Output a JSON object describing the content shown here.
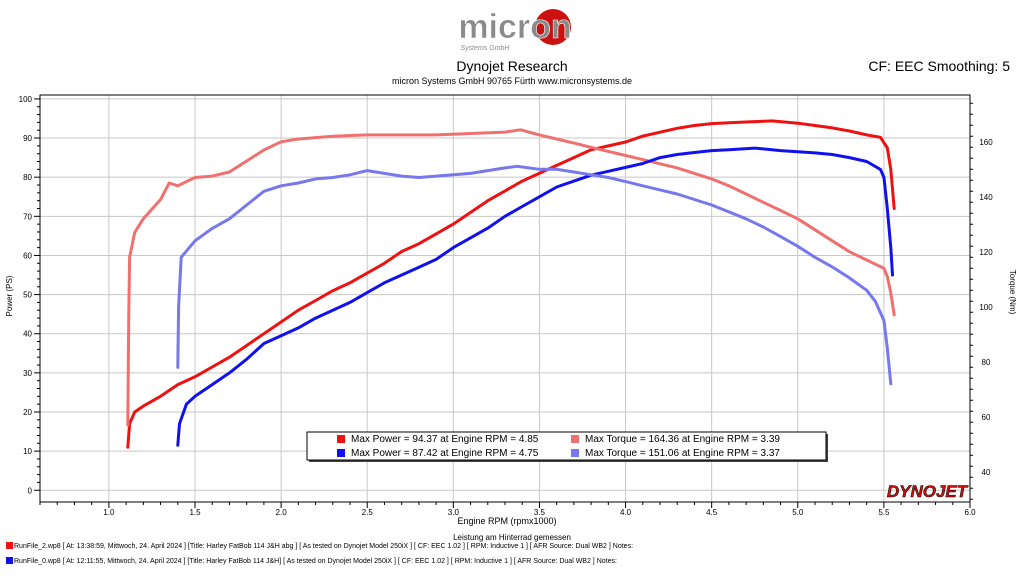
{
  "header": {
    "logo_text": "micron",
    "logo_subtext": "Systems GmbH",
    "title": "Dynojet Research",
    "subtitle": "micron Systems GmbH  90765 Fürth www.micronsystems.de",
    "smoothing": "CF: EEC Smoothing: 5"
  },
  "brand": {
    "text": "DYNOJET",
    "color": "#cc1111"
  },
  "footer": {
    "sub_label": "Leistung am Hinterrad gemessen",
    "runs": [
      {
        "text": "RunFile_2.wp8  [ At: 13:38:59, Mittwoch, 24. April 2024 ] [Title: Harley FatBob 114 J&H abg ]  [ As tested on Dynojet Model 250iX ] [ CF: EEC 1.02 ] [ RPM: Inductive 1 ] [ AFR Source: Dual WB2 ] Notes:",
        "color": "#ee1111"
      },
      {
        "text": "RunFile_0.wp8  [ At: 12:11:55, Mittwoch, 24. April 2024 ] [Title: Harley FatBob 114 J&H]  [ As tested on Dynojet Model 250iX ] [ CF: EEC 1.02 ] [ RPM: Inductive 1 ] [ AFR Source: Dual WB2 ] Notes:",
        "color": "#1111ee"
      }
    ]
  },
  "chart_data": {
    "type": "line",
    "xlabel": "Engine RPM (rpmx1000)",
    "ylabel_left": "Power (PS)",
    "ylabel_right": "Torque (Nm)",
    "xlim": [
      0.6,
      6.0
    ],
    "ylim_left": [
      -3,
      101
    ],
    "ylim_right": [
      29,
      177
    ],
    "x_ticks": [
      "1.0",
      "1.5",
      "2.0",
      "2.5",
      "3.0",
      "3.5",
      "4.0",
      "4.5",
      "5.0",
      "5.5",
      "6.0"
    ],
    "y_left_ticks": [
      "0",
      "10",
      "20",
      "30",
      "40",
      "50",
      "60",
      "70",
      "80",
      "90",
      "100"
    ],
    "y_right_ticks": [
      "40",
      "60",
      "80",
      "100",
      "120",
      "140",
      "160"
    ],
    "grid": true,
    "legend_position": "bottom-center",
    "legend": [
      {
        "text": "Max Power = 94.37 at Engine RPM = 4.85",
        "color": "#ee1111"
      },
      {
        "text": "Max Torque = 164.36 at Engine RPM = 3.39",
        "color": "#f07070"
      },
      {
        "text": "Max Power = 87.42 at Engine RPM = 4.75",
        "color": "#1111ee"
      },
      {
        "text": "Max Torque = 151.06 at Engine RPM = 3.37",
        "color": "#7777ee"
      }
    ],
    "series": [
      {
        "axis": "left",
        "color": "#ee1111",
        "width": 3,
        "points": [
          [
            1.11,
            11
          ],
          [
            1.12,
            17
          ],
          [
            1.15,
            20
          ],
          [
            1.2,
            21.5
          ],
          [
            1.3,
            24
          ],
          [
            1.4,
            27
          ],
          [
            1.5,
            29
          ],
          [
            1.6,
            31.5
          ],
          [
            1.7,
            34
          ],
          [
            1.8,
            37
          ],
          [
            1.9,
            40
          ],
          [
            2.0,
            43
          ],
          [
            2.1,
            46
          ],
          [
            2.2,
            48.5
          ],
          [
            2.3,
            51
          ],
          [
            2.4,
            53
          ],
          [
            2.5,
            55.5
          ],
          [
            2.6,
            58
          ],
          [
            2.7,
            61
          ],
          [
            2.8,
            63
          ],
          [
            2.9,
            65.5
          ],
          [
            3.0,
            68
          ],
          [
            3.1,
            71
          ],
          [
            3.2,
            74
          ],
          [
            3.3,
            76.5
          ],
          [
            3.4,
            79
          ],
          [
            3.5,
            81
          ],
          [
            3.6,
            83
          ],
          [
            3.7,
            85
          ],
          [
            3.8,
            87
          ],
          [
            3.9,
            88
          ],
          [
            4.0,
            89
          ],
          [
            4.1,
            90.5
          ],
          [
            4.2,
            91.5
          ],
          [
            4.3,
            92.5
          ],
          [
            4.4,
            93.2
          ],
          [
            4.5,
            93.7
          ],
          [
            4.6,
            93.9
          ],
          [
            4.7,
            94.1
          ],
          [
            4.85,
            94.37
          ],
          [
            5.0,
            93.8
          ],
          [
            5.1,
            93.2
          ],
          [
            5.2,
            92.6
          ],
          [
            5.3,
            91.8
          ],
          [
            5.4,
            90.8
          ],
          [
            5.48,
            90.2
          ],
          [
            5.52,
            87.5
          ],
          [
            5.54,
            82
          ],
          [
            5.56,
            72
          ]
        ]
      },
      {
        "axis": "right",
        "color": "#f07070",
        "width": 3,
        "points": [
          [
            1.11,
            57
          ],
          [
            1.115,
            95
          ],
          [
            1.12,
            118
          ],
          [
            1.15,
            127
          ],
          [
            1.2,
            132
          ],
          [
            1.3,
            139
          ],
          [
            1.35,
            145
          ],
          [
            1.4,
            144
          ],
          [
            1.5,
            147
          ],
          [
            1.6,
            147.5
          ],
          [
            1.7,
            149
          ],
          [
            1.8,
            153
          ],
          [
            1.9,
            157
          ],
          [
            2.0,
            160
          ],
          [
            2.1,
            161
          ],
          [
            2.3,
            162
          ],
          [
            2.5,
            162.5
          ],
          [
            2.7,
            162.5
          ],
          [
            2.9,
            162.5
          ],
          [
            3.1,
            163
          ],
          [
            3.3,
            163.5
          ],
          [
            3.39,
            164.36
          ],
          [
            3.5,
            162.5
          ],
          [
            3.6,
            161
          ],
          [
            3.7,
            159.5
          ],
          [
            3.8,
            158
          ],
          [
            3.9,
            156.5
          ],
          [
            4.0,
            155
          ],
          [
            4.1,
            153.5
          ],
          [
            4.2,
            152
          ],
          [
            4.3,
            150.5
          ],
          [
            4.4,
            148.5
          ],
          [
            4.5,
            146.5
          ],
          [
            4.6,
            144
          ],
          [
            4.7,
            141
          ],
          [
            4.8,
            138
          ],
          [
            4.9,
            135
          ],
          [
            5.0,
            132
          ],
          [
            5.1,
            128
          ],
          [
            5.2,
            124
          ],
          [
            5.3,
            120
          ],
          [
            5.4,
            117
          ],
          [
            5.5,
            114
          ],
          [
            5.52,
            111
          ],
          [
            5.54,
            105
          ],
          [
            5.56,
            97
          ]
        ]
      },
      {
        "axis": "left",
        "color": "#1111ee",
        "width": 3,
        "points": [
          [
            1.4,
            11.5
          ],
          [
            1.41,
            17
          ],
          [
            1.45,
            22
          ],
          [
            1.5,
            24
          ],
          [
            1.6,
            27
          ],
          [
            1.7,
            30
          ],
          [
            1.8,
            33.5
          ],
          [
            1.9,
            37.5
          ],
          [
            2.0,
            39.5
          ],
          [
            2.1,
            41.5
          ],
          [
            2.2,
            44
          ],
          [
            2.3,
            46
          ],
          [
            2.4,
            48
          ],
          [
            2.5,
            50.5
          ],
          [
            2.6,
            53
          ],
          [
            2.7,
            55
          ],
          [
            2.8,
            57
          ],
          [
            2.9,
            59
          ],
          [
            3.0,
            62
          ],
          [
            3.1,
            64.5
          ],
          [
            3.2,
            67
          ],
          [
            3.3,
            70
          ],
          [
            3.4,
            72.5
          ],
          [
            3.5,
            75
          ],
          [
            3.6,
            77.5
          ],
          [
            3.7,
            79
          ],
          [
            3.8,
            80.5
          ],
          [
            3.9,
            81.5
          ],
          [
            4.0,
            82.5
          ],
          [
            4.1,
            83.5
          ],
          [
            4.2,
            85
          ],
          [
            4.3,
            85.8
          ],
          [
            4.4,
            86.3
          ],
          [
            4.5,
            86.8
          ],
          [
            4.6,
            87
          ],
          [
            4.75,
            87.42
          ],
          [
            4.9,
            86.8
          ],
          [
            5.0,
            86.5
          ],
          [
            5.1,
            86.2
          ],
          [
            5.2,
            85.8
          ],
          [
            5.3,
            85
          ],
          [
            5.4,
            84
          ],
          [
            5.48,
            82
          ],
          [
            5.5,
            80
          ],
          [
            5.52,
            72
          ],
          [
            5.54,
            62
          ],
          [
            5.55,
            55
          ]
        ]
      },
      {
        "axis": "right",
        "color": "#7777ee",
        "width": 3,
        "points": [
          [
            1.4,
            78
          ],
          [
            1.405,
            100
          ],
          [
            1.42,
            118
          ],
          [
            1.5,
            124
          ],
          [
            1.6,
            128.5
          ],
          [
            1.7,
            132
          ],
          [
            1.8,
            137
          ],
          [
            1.9,
            142
          ],
          [
            2.0,
            144
          ],
          [
            2.1,
            145
          ],
          [
            2.2,
            146.5
          ],
          [
            2.3,
            147
          ],
          [
            2.4,
            148
          ],
          [
            2.5,
            149.5
          ],
          [
            2.6,
            148.5
          ],
          [
            2.7,
            147.5
          ],
          [
            2.8,
            147
          ],
          [
            2.9,
            147.5
          ],
          [
            3.0,
            148
          ],
          [
            3.1,
            148.5
          ],
          [
            3.2,
            149.5
          ],
          [
            3.3,
            150.5
          ],
          [
            3.37,
            151.06
          ],
          [
            3.5,
            150
          ],
          [
            3.6,
            150
          ],
          [
            3.7,
            149
          ],
          [
            3.8,
            148
          ],
          [
            3.9,
            147
          ],
          [
            4.0,
            145.5
          ],
          [
            4.1,
            144
          ],
          [
            4.2,
            142.5
          ],
          [
            4.3,
            141
          ],
          [
            4.4,
            139
          ],
          [
            4.5,
            137
          ],
          [
            4.6,
            134.5
          ],
          [
            4.7,
            132
          ],
          [
            4.8,
            129
          ],
          [
            4.9,
            125.5
          ],
          [
            5.0,
            122
          ],
          [
            5.1,
            118
          ],
          [
            5.2,
            114.5
          ],
          [
            5.3,
            110.5
          ],
          [
            5.4,
            106
          ],
          [
            5.45,
            102
          ],
          [
            5.5,
            95
          ],
          [
            5.52,
            85
          ],
          [
            5.54,
            72
          ]
        ]
      }
    ]
  }
}
